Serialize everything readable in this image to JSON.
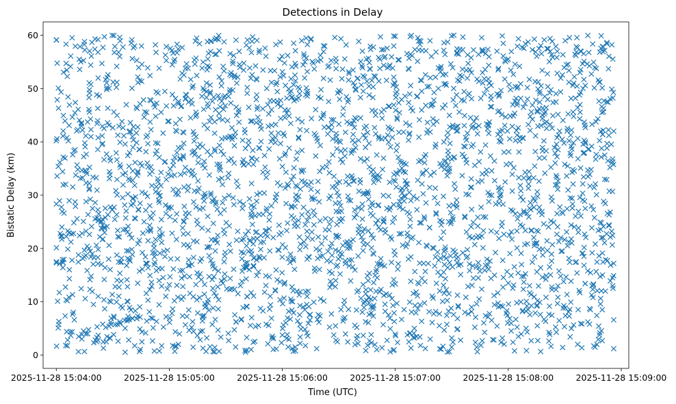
{
  "chart_data": {
    "type": "scatter",
    "title": "Detections in Delay",
    "xlabel": "Time (UTC)",
    "ylabel": "Bistatic Delay (km)",
    "marker": "x",
    "color": "#1f77b4",
    "x_range": [
      "2025-11-28 15:03:53",
      "2025-11-28 15:09:04"
    ],
    "data_x_range": [
      "2025-11-28 15:04:00",
      "2025-11-28 15:08:56"
    ],
    "ylim": [
      -2.5,
      62.5
    ],
    "grid": false,
    "x_ticks": [
      "2025-11-28 15:04:00",
      "2025-11-28 15:05:00",
      "2025-11-28 15:06:00",
      "2025-11-28 15:07:00",
      "2025-11-28 15:08:00",
      "2025-11-28 15:09:00"
    ],
    "y_ticks": [
      "0",
      "10",
      "20",
      "30",
      "40",
      "50",
      "60"
    ],
    "point_count": 3000,
    "delay_range_km": [
      0.5,
      60
    ],
    "samples": [
      {
        "x": "2025-11-28 15:04:00",
        "y": 40.2
      },
      {
        "x": "2025-11-28 15:04:00",
        "y": 59.1
      },
      {
        "x": "2025-11-28 15:04:00",
        "y": 17.5
      },
      {
        "x": "2025-11-28 15:04:01",
        "y": 5.1
      },
      {
        "x": "2025-11-28 15:04:03",
        "y": 24.0
      },
      {
        "x": "2025-11-28 15:04:05",
        "y": 1.8
      },
      {
        "x": "2025-11-28 15:04:10",
        "y": 38.5
      },
      {
        "x": "2025-11-28 15:04:25",
        "y": 1.3
      },
      {
        "x": "2025-11-28 15:05:24",
        "y": 0.6
      },
      {
        "x": "2025-11-28 15:06:08",
        "y": 38.0
      },
      {
        "x": "2025-11-28 15:07:00",
        "y": 59.8
      },
      {
        "x": "2025-11-28 15:08:00",
        "y": 13.5
      },
      {
        "x": "2025-11-28 15:08:55",
        "y": 58.2
      },
      {
        "x": "2025-11-28 15:08:56",
        "y": 42.0
      },
      {
        "x": "2025-11-28 15:08:56",
        "y": 17.2
      },
      {
        "x": "2025-11-28 15:08:56",
        "y": 6.6
      },
      {
        "x": "2025-11-28 15:08:56",
        "y": 1.2
      }
    ]
  }
}
